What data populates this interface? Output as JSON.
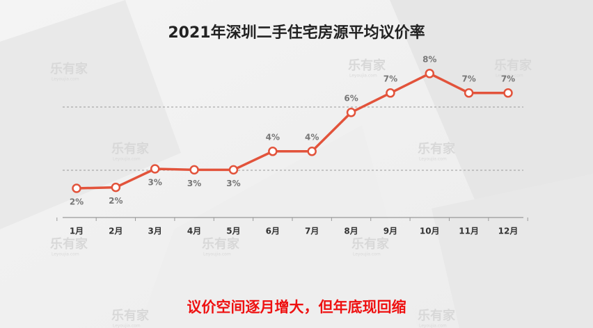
{
  "chart_data": {
    "type": "line",
    "title": "2021年深圳二手住宅房源平均议价率",
    "subtitle": "议价空间逐月增大，但年底现回缩",
    "watermark": "乐有家",
    "watermark_sub": "Leyoujia.com",
    "categories": [
      "1月",
      "2月",
      "3月",
      "4月",
      "5月",
      "6月",
      "7月",
      "8月",
      "9月",
      "10月",
      "11月",
      "12月"
    ],
    "values": [
      2.0,
      2.05,
      3.0,
      2.95,
      2.95,
      3.9,
      3.9,
      5.9,
      6.9,
      7.9,
      6.9,
      6.9
    ],
    "value_labels": [
      "2%",
      "2%",
      "3%",
      "3%",
      "3%",
      "4%",
      "4%",
      "6%",
      "7%",
      "8%",
      "7%",
      "7%"
    ],
    "color": "#e2533b",
    "ylim": [
      0.5,
      9
    ]
  }
}
